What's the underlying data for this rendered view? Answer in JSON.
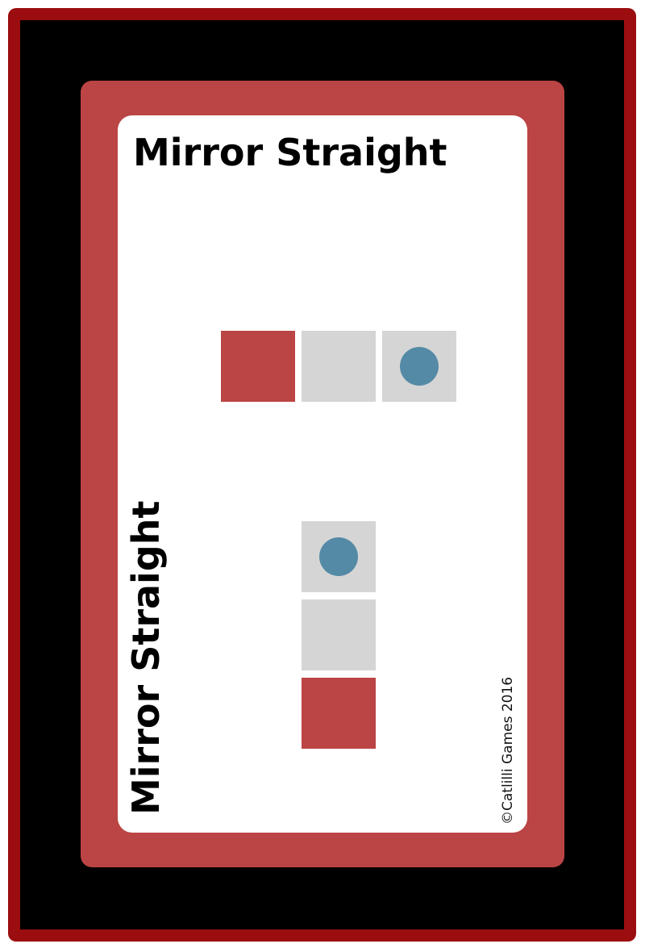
{
  "card": {
    "title": "Mirror Straight",
    "copyright": "©Catlilli Games 2016"
  },
  "colors": {
    "outer_frame": "#9b0d0f",
    "background": "#000000",
    "card_border": "#bb4444",
    "card_face": "#ffffff",
    "start_tile": "#bb4444",
    "empty_tile": "#d5d5d5",
    "piece": "#548aa6"
  },
  "patterns": [
    {
      "orientation": "horizontal",
      "tiles": [
        {
          "kind": "start",
          "piece": false
        },
        {
          "kind": "empty",
          "piece": false
        },
        {
          "kind": "empty",
          "piece": true
        }
      ]
    },
    {
      "orientation": "vertical",
      "tiles": [
        {
          "kind": "empty",
          "piece": true
        },
        {
          "kind": "empty",
          "piece": false
        },
        {
          "kind": "start",
          "piece": false
        }
      ]
    }
  ]
}
